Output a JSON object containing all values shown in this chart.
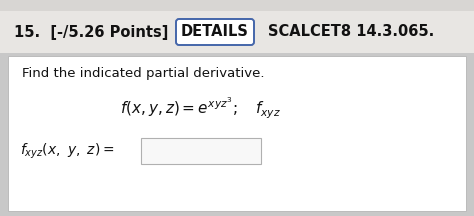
{
  "bg_outer": "#c8c8c8",
  "bg_header": "#e8e6e3",
  "bg_body": "#ffffff",
  "header_text": "15.  [-/5.26 Points]",
  "details_btn": "DETAILS",
  "scalcet_text": "SCALCET8 14.3.065.",
  "instruction": "Find the indicated partial derivative.",
  "header_font_size": 10.5,
  "body_font_size": 9.5,
  "eq_font_size": 11,
  "ans_font_size": 10,
  "details_border_color": "#4466aa",
  "details_bg": "#ffffff",
  "answer_box_edge": "#b0b0b0",
  "answer_box_fill": "#f8f8f8",
  "text_color": "#111111"
}
